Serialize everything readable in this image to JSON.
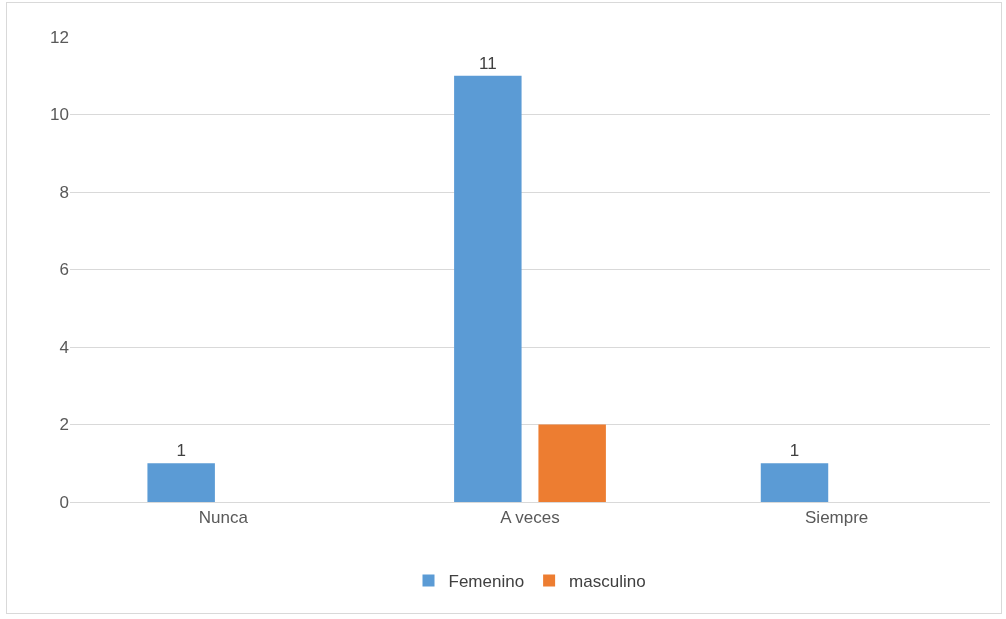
{
  "chart_data": {
    "type": "bar",
    "categories": [
      "Nunca",
      "A veces",
      "Siempre"
    ],
    "series": [
      {
        "name": "Femenino",
        "color": "#5b9bd5",
        "values": [
          1,
          11,
          1
        ],
        "value_labels": [
          "1",
          "11",
          "1"
        ]
      },
      {
        "name": "masculino",
        "color": "#ed7d31",
        "values": [
          0,
          2,
          0
        ]
      }
    ],
    "ylim": [
      0,
      12
    ],
    "yticks": [
      0,
      2,
      4,
      6,
      8,
      10,
      12
    ],
    "grid": "y",
    "legend": "bottom"
  }
}
